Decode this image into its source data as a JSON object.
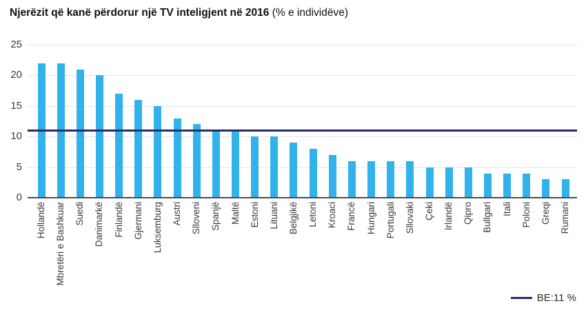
{
  "title": {
    "main": "Njerëzit që kanë përdorur një TV inteligjent në 2016",
    "suffix": " (% e individëve)"
  },
  "chart_data": {
    "type": "bar",
    "title": "Njerëzit që kanë përdorur një TV inteligjent në 2016 (% e individëve)",
    "categories": [
      "Hollandë",
      "Mbretëri e Bashkuar",
      "Suedi",
      "Danimarkë",
      "Finlandë",
      "Gjermani",
      "Luksemburg",
      "Austri",
      "Slloveni",
      "Spanjë",
      "Maltë",
      "Estoni",
      "Lituani",
      "Belgjikë",
      "Letoni",
      "Kroaci",
      "Francë",
      "Hungari",
      "Portugali",
      "Sllovaki",
      "Çeki",
      "Irlandë",
      "Qipro",
      "Bullgari",
      "Itali",
      "Poloni",
      "Greqi",
      "Rumani"
    ],
    "values": [
      22,
      22,
      21,
      20,
      17,
      16,
      15,
      13,
      12,
      11,
      11,
      10,
      10,
      9,
      8,
      7,
      6,
      6,
      6,
      6,
      5,
      5,
      5,
      4,
      4,
      4,
      3,
      3
    ],
    "xlabel": "",
    "ylabel": "",
    "ylim": [
      0,
      25
    ],
    "yticks": [
      0,
      5,
      10,
      15,
      20,
      25
    ],
    "grid": true,
    "bar_color": "#32b2ea",
    "reference_line": {
      "value": 11,
      "label": "BE:11 %",
      "color": "#232b6b"
    },
    "legend_position": "bottom-right"
  }
}
